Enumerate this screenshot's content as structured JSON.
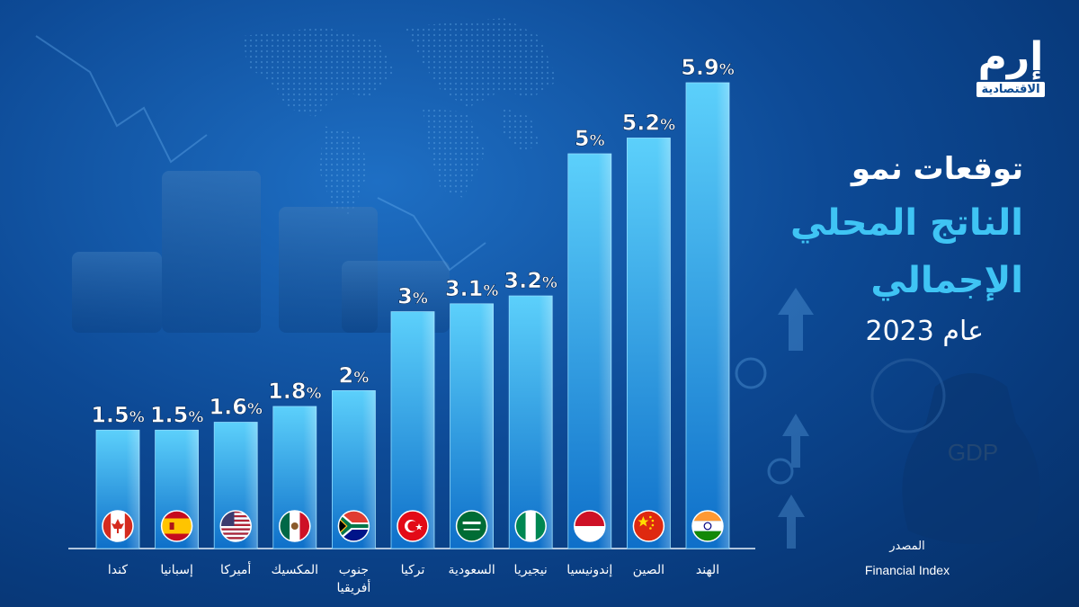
{
  "brand": {
    "logo_main": "إرم",
    "logo_sub": "الاقتصادية"
  },
  "title": {
    "line1": "توقعات نمو",
    "line2": "الناتج المحلي",
    "line3": "الإجمالي",
    "year": "عام 2023"
  },
  "background": {
    "watermark": "GDP"
  },
  "source": {
    "label": "المصدر",
    "name": "Financial Index"
  },
  "colors": {
    "bar_top": "#5cd0fb",
    "bar_bottom": "#0e6fc9",
    "title_accent": "#3fc4f4",
    "text": "#ffffff"
  },
  "chart_data": {
    "type": "bar",
    "categories": [
      "كندا",
      "إسبانيا",
      "أميركا",
      "المكسيك",
      "جنوب أفريقيا",
      "تركيا",
      "السعودية",
      "نيجيريا",
      "إندونيسيا",
      "الصين",
      "الهند"
    ],
    "category_lines": [
      [
        "كندا"
      ],
      [
        "إسبانيا"
      ],
      [
        "أميركا"
      ],
      [
        "المكسيك"
      ],
      [
        "جنوب",
        "أفريقيا"
      ],
      [
        "تركيا"
      ],
      [
        "السعودية"
      ],
      [
        "نيجيريا"
      ],
      [
        "إندونيسيا"
      ],
      [
        "الصين"
      ],
      [
        "الهند"
      ]
    ],
    "values": [
      1.5,
      1.5,
      1.6,
      1.8,
      2,
      3,
      3.1,
      3.2,
      5,
      5.2,
      5.9
    ],
    "value_labels": [
      "1.5",
      "1.5",
      "1.6",
      "1.8",
      "2",
      "3",
      "3.1",
      "3.2",
      "5",
      "5.2",
      "5.9"
    ],
    "unit": "%",
    "flags": [
      "canada-flag-icon",
      "spain-flag-icon",
      "usa-flag-icon",
      "mexico-flag-icon",
      "south-africa-flag-icon",
      "turkey-flag-icon",
      "saudi-arabia-flag-icon",
      "nigeria-flag-icon",
      "indonesia-flag-icon",
      "china-flag-icon",
      "india-flag-icon"
    ],
    "ylim": [
      0,
      5.9
    ],
    "grid": false,
    "legend": false
  }
}
